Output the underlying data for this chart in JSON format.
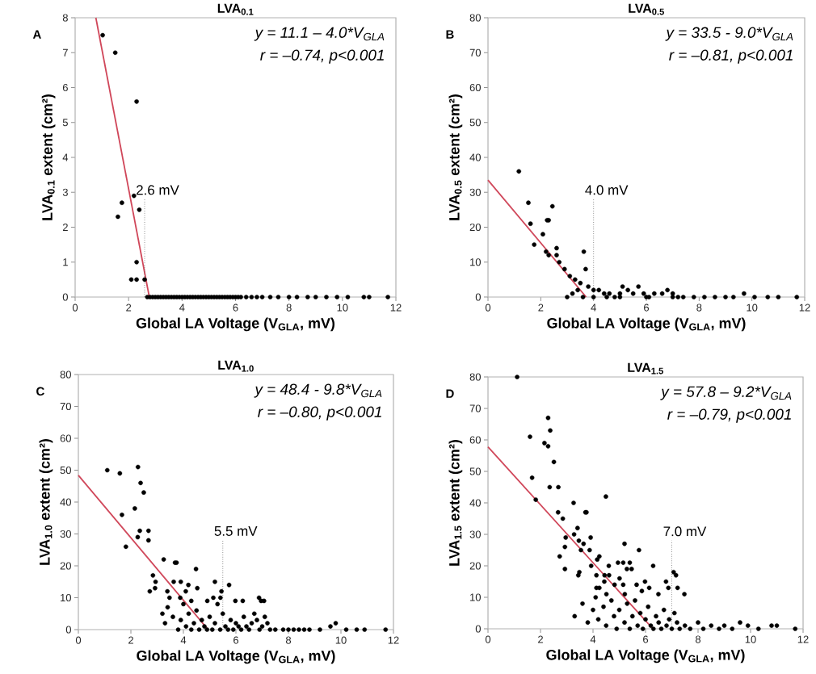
{
  "chart_data": [
    {
      "type": "scatter",
      "title": "LVA$_{0.1}$",
      "xlabel": "Global LA Voltage (V$_{GLA}$, mV)",
      "ylabel": "LVA$_{0.1}$ extent (cm²)",
      "xlim": [
        0,
        12
      ],
      "xticks": [
        0,
        2,
        4,
        6,
        8,
        10,
        12
      ],
      "ylim": [
        0,
        8
      ],
      "yticks": [
        0,
        1,
        2,
        3,
        4,
        5,
        6,
        7,
        8
      ],
      "annotations": [
        "A",
        "y = 11.1 – 4.0*V$_{GLA}$",
        "r = –0.74, p<0.001"
      ],
      "ref_lines": [
        {
          "axis": "x",
          "value": 2.6,
          "label": "2.6 mV",
          "color": "#555555",
          "line_style": "dotted"
        }
      ],
      "series": [
        {
          "color": "#000000",
          "marker": "circle",
          "x": [
            1.03,
            1.5,
            2.3,
            2.2,
            1.75,
            1.6,
            2.4,
            2.3,
            2.1,
            2.3,
            2.6,
            2.7,
            2.8,
            2.9,
            3.0,
            3.1,
            3.2,
            3.3,
            3.4,
            3.5,
            3.6,
            3.7,
            3.8,
            3.9,
            4.0,
            4.1,
            4.2,
            4.3,
            4.4,
            4.5,
            4.6,
            4.7,
            4.8,
            4.9,
            5.0,
            5.1,
            5.2,
            5.3,
            5.4,
            5.5,
            5.6,
            5.7,
            5.8,
            5.9,
            6.0,
            6.1,
            6.2,
            6.4,
            6.6,
            6.8,
            7.0,
            7.3,
            7.6,
            8.0,
            8.3,
            8.7,
            9.0,
            9.4,
            9.8,
            10.2,
            10.8,
            11.0,
            11.7
          ],
          "values": [
            7.5,
            7.0,
            5.6,
            2.9,
            2.7,
            2.3,
            2.5,
            1.0,
            0.5,
            0.5,
            0.5,
            0,
            0,
            0,
            0,
            0,
            0,
            0,
            0,
            0,
            0,
            0,
            0,
            0,
            0,
            0,
            0,
            0,
            0,
            0,
            0,
            0,
            0,
            0,
            0,
            0,
            0,
            0,
            0,
            0,
            0,
            0,
            0,
            0,
            0,
            0,
            0,
            0,
            0,
            0,
            0,
            0,
            0,
            0,
            0,
            0,
            0,
            0,
            0,
            0,
            0,
            0,
            0
          ]
        },
        {
          "type": "line",
          "color": "#d0475a",
          "marker": "none",
          "line_style": "solid",
          "x": [
            0.775,
            2.775
          ],
          "values": [
            8,
            0
          ]
        }
      ]
    },
    {
      "type": "scatter",
      "title": "LVA$_{0.5}$",
      "xlabel": "Global LA Voltage (V$_{GLA}$, mV)",
      "ylabel": "LVA$_{0.5}$ extent (cm²)",
      "xlim": [
        0,
        12
      ],
      "xticks": [
        0,
        2,
        4,
        6,
        8,
        10,
        12
      ],
      "ylim": [
        0,
        80
      ],
      "yticks": [
        0,
        10,
        20,
        30,
        40,
        50,
        60,
        70,
        80
      ],
      "annotations": [
        "B",
        "y = 33.5 - 9.0*V$_{GLA}$",
        "r = –0.81, p<0.001"
      ],
      "ref_lines": [
        {
          "axis": "x",
          "value": 4.0,
          "label": "4.0 mV",
          "color": "#555555",
          "line_style": "dotted"
        }
      ],
      "series": [
        {
          "color": "#000000",
          "marker": "circle",
          "x": [
            1.17,
            1.53,
            2.44,
            1.61,
            2.24,
            2.3,
            2.08,
            1.75,
            2.6,
            2.2,
            2.3,
            2.6,
            3.63,
            2.7,
            2.9,
            3.1,
            3.3,
            3.5,
            3.7,
            3.4,
            3.2,
            3.0,
            3.6,
            3.8,
            4.0,
            4.2,
            4.4,
            4.6,
            4.8,
            5.0,
            5.1,
            5.3,
            5.5,
            5.7,
            5.9,
            6.1,
            6.3,
            6.6,
            6.8,
            7.0,
            7.2,
            7.4,
            7.0,
            6.0,
            5.0,
            4.5,
            4.0,
            7.8,
            8.2,
            8.6,
            9.0,
            9.3,
            9.7,
            10.1,
            10.6,
            11.0,
            11.7
          ],
          "values": [
            36,
            27,
            26,
            21,
            22,
            22,
            18,
            15,
            14,
            13,
            12,
            12,
            13,
            10,
            8,
            6,
            5,
            4,
            8,
            2,
            1,
            0,
            0,
            3,
            2,
            2,
            1,
            1,
            0,
            1,
            3,
            2,
            1,
            3,
            1,
            0,
            1,
            1,
            2,
            1,
            0,
            0,
            0,
            0,
            0,
            0,
            0,
            0,
            0,
            0,
            0,
            0,
            1,
            0,
            0,
            0,
            0
          ]
        },
        {
          "type": "line",
          "color": "#d0475a",
          "marker": "none",
          "line_style": "solid",
          "x": [
            0,
            3.72
          ],
          "values": [
            33.5,
            0
          ]
        }
      ]
    },
    {
      "type": "scatter",
      "title": "LVA$_{1.0}$",
      "xlabel": "Global LA Voltage (V$_{GLA}$, mV)",
      "ylabel": "LVA$_{1.0}$ extent (cm²)",
      "xlim": [
        0,
        12
      ],
      "xticks": [
        0,
        2,
        4,
        6,
        8,
        10,
        12
      ],
      "ylim": [
        0,
        80
      ],
      "yticks": [
        0,
        10,
        20,
        30,
        40,
        50,
        60,
        70,
        80
      ],
      "annotations": [
        "C",
        "y = 48.4 - 9.8*V$_{GLA}$",
        "r = –0.80, p<0.001"
      ],
      "ref_lines": [
        {
          "axis": "x",
          "value": 5.5,
          "label": "5.5 mV",
          "color": "#555555",
          "line_style": "dotted"
        }
      ],
      "series": [
        {
          "color": "#000000",
          "marker": "circle",
          "x": [
            1.1,
            1.58,
            2.27,
            2.37,
            2.49,
            2.15,
            1.66,
            2.34,
            2.67,
            2.67,
            2.26,
            1.81,
            3.25,
            3.68,
            3.74,
            4.48,
            2.84,
            2.94,
            2.92,
            2.72,
            3.63,
            3.9,
            4.19,
            4.53,
            5.2,
            5.74,
            5.45,
            5.14,
            5.41,
            3.39,
            3.47,
            3.88,
            4.09,
            4.3,
            4.91,
            5.98,
            6.26,
            6.88,
            6.96,
            7.07,
            3.2,
            3.3,
            3.4,
            3.6,
            3.8,
            3.9,
            4.0,
            4.1,
            4.2,
            4.3,
            4.4,
            4.5,
            4.6,
            4.7,
            4.8,
            4.9,
            5.0,
            5.1,
            5.2,
            5.3,
            5.4,
            5.5,
            5.6,
            5.7,
            5.8,
            5.9,
            6.0,
            6.1,
            6.2,
            6.3,
            6.4,
            6.5,
            6.6,
            6.7,
            6.8,
            6.9,
            7.0,
            7.1,
            7.2,
            7.3,
            7.5,
            7.8,
            8.0,
            8.2,
            8.4,
            8.6,
            8.8,
            9.2,
            9.6,
            9.8,
            10.2,
            10.6,
            10.9,
            11.7
          ],
          "values": [
            50,
            49,
            51,
            46,
            43,
            38,
            36,
            31,
            31,
            28,
            29,
            26,
            22,
            21,
            21,
            19,
            17,
            15,
            13,
            12,
            15,
            15,
            14,
            13,
            15,
            14,
            12,
            10,
            10,
            12,
            10,
            10,
            12,
            9,
            9,
            9,
            9,
            10,
            9,
            9,
            5,
            2,
            7,
            4,
            0,
            3,
            8,
            1,
            5,
            0,
            2,
            6,
            0,
            3,
            1,
            0,
            4,
            0,
            2,
            8,
            0,
            5,
            1,
            0,
            3,
            0,
            2,
            1,
            0,
            4,
            1,
            0,
            2,
            5,
            3,
            0,
            1,
            4,
            2,
            0,
            0,
            0,
            0,
            0,
            0,
            0,
            0,
            0,
            1,
            2,
            0,
            0,
            0,
            0
          ]
        },
        {
          "type": "line",
          "color": "#d0475a",
          "marker": "none",
          "line_style": "solid",
          "x": [
            0,
            4.94
          ],
          "values": [
            48.4,
            0
          ]
        }
      ]
    },
    {
      "type": "scatter",
      "title": "LVA$_{1.5}$",
      "xlabel": "Global LA Voltage (V$_{GLA}$, mV)",
      "ylabel": "LVA$_{1.5}$ extent (cm²)",
      "xlim": [
        0,
        12
      ],
      "xticks": [
        0,
        2,
        4,
        6,
        8,
        10,
        12
      ],
      "ylim": [
        0,
        80
      ],
      "yticks": [
        0,
        10,
        20,
        30,
        40,
        50,
        60,
        70,
        80
      ],
      "annotations": [
        "D",
        "y = 57.8 – 9.2*V$_{GLA}$",
        "r = –0.79, p<0.001"
      ],
      "ref_lines": [
        {
          "axis": "x",
          "value": 7.0,
          "label": "7.0 mV",
          "color": "#555555",
          "line_style": "dotted"
        }
      ],
      "series": [
        {
          "color": "#000000",
          "marker": "circle",
          "x": [
            1.11,
            2.29,
            2.37,
            1.6,
            2.15,
            2.29,
            2.51,
            1.68,
            2.35,
            2.68,
            1.82,
            4.49,
            3.26,
            3.71,
            3.75,
            2.67,
            2.85,
            3.41,
            3.28,
            2.96,
            3.91,
            3.46,
            3.64,
            3.87,
            3.54,
            2.93,
            2.73,
            5.2,
            5.75,
            4.24,
            4.16,
            3.93,
            4.6,
            4.95,
            5.15,
            5.4,
            5.47,
            5.29,
            6.29,
            2.93,
            3.48,
            3.44,
            4.13,
            4.44,
            4.61,
            5.01,
            7.07,
            7.16,
            5.98,
            6.78,
            4.43,
            4.82,
            4.13,
            4.24,
            5.15,
            5.66,
            6.14,
            6.87,
            7.22,
            4.51,
            5.21,
            5.86,
            6.49,
            7.48,
            3.3,
            3.6,
            3.8,
            4.0,
            4.1,
            4.2,
            4.4,
            4.5,
            4.7,
            4.8,
            4.9,
            5.0,
            5.2,
            5.3,
            5.4,
            5.5,
            5.6,
            5.7,
            5.8,
            5.9,
            6.0,
            6.1,
            6.2,
            6.3,
            6.4,
            6.5,
            6.6,
            6.7,
            6.8,
            6.9,
            7.0,
            7.1,
            7.2,
            7.3,
            7.5,
            7.7,
            8.0,
            8.2,
            8.5,
            8.8,
            9.0,
            9.3,
            9.6,
            9.9,
            10.3,
            10.8,
            11.0,
            11.7
          ],
          "values": [
            80,
            67,
            63,
            61,
            59,
            58,
            53,
            48,
            45,
            45,
            41,
            42,
            40,
            37,
            37,
            37,
            35,
            32,
            30,
            29,
            29,
            28,
            27,
            25,
            25,
            26,
            23,
            27,
            25,
            23,
            22,
            20,
            20,
            21,
            21,
            21,
            19,
            19,
            20,
            19,
            18,
            17,
            17,
            17,
            17,
            16,
            18,
            17,
            15,
            15,
            15,
            14,
            13,
            13,
            14,
            14,
            13,
            13,
            13,
            11,
            11,
            12,
            11,
            11,
            4,
            8,
            2,
            6,
            10,
            3,
            7,
            1,
            9,
            4,
            0,
            6,
            2,
            8,
            0,
            4,
            9,
            1,
            5,
            0,
            3,
            7,
            1,
            0,
            4,
            2,
            0,
            6,
            1,
            3,
            0,
            5,
            2,
            0,
            1,
            0,
            2,
            0,
            1,
            0,
            1,
            0,
            2,
            1,
            0,
            1,
            1,
            0
          ]
        },
        {
          "type": "line",
          "color": "#d0475a",
          "marker": "none",
          "line_style": "solid",
          "x": [
            0,
            6.28
          ],
          "values": [
            57.8,
            0
          ]
        }
      ]
    }
  ]
}
